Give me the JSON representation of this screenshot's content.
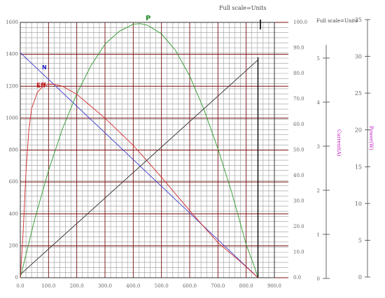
{
  "chart_data": {
    "type": "line",
    "headers": {
      "main": "Full scale=Units",
      "side": "Full scale=Units"
    },
    "x": {
      "range": [
        0,
        900
      ],
      "ticks": [
        0,
        100,
        200,
        300,
        400,
        500,
        600,
        700,
        800,
        900
      ],
      "tick_labels": [
        "0.0",
        "100.0",
        "200.0",
        "300.0",
        "400.0",
        "500.0",
        "600.0",
        "700.0",
        "800.0",
        "900.0"
      ]
    },
    "left_axis": {
      "range": [
        0,
        1600
      ],
      "ticks": [
        0,
        200,
        400,
        600,
        800,
        1000,
        1200,
        1400,
        1600
      ],
      "tick_labels": [
        "0",
        "200",
        "400",
        "600",
        "800",
        "1000",
        "1200",
        "1400",
        "1600"
      ]
    },
    "mid_axis": {
      "range": [
        0,
        100
      ],
      "ticks": [
        0,
        10,
        20,
        30,
        40,
        50,
        60,
        70,
        80,
        90,
        100
      ],
      "tick_labels": [
        "0.0",
        "10.0",
        "20.0",
        "30.0",
        "40.0",
        "50.0",
        "60.0",
        "70.0",
        "80.0",
        "90.0",
        "100.0"
      ]
    },
    "current_axis": {
      "label": "Current(A)",
      "color": "#c020c0",
      "range": [
        0,
        6
      ],
      "ticks": [
        0,
        1,
        2,
        3,
        4,
        5
      ],
      "tick_labels": [
        "0",
        "1",
        "2",
        "3",
        "4",
        "5"
      ]
    },
    "power_axis": {
      "label": "Power(W)",
      "color": "#c020c0",
      "range": [
        0,
        35
      ],
      "ticks": [
        0,
        5,
        10,
        15,
        20,
        25,
        30,
        35
      ],
      "tick_labels": [
        "0",
        "5",
        "10",
        "15",
        "20",
        "25",
        "30",
        "35"
      ]
    },
    "series": [
      {
        "name": "N",
        "axis": "left",
        "color": "#3a3ad0",
        "x": [
          0,
          842
        ],
        "y": [
          1410,
          0
        ]
      },
      {
        "name": "P",
        "axis": "mid",
        "color": "#2e9a2e",
        "x": [
          0,
          50,
          100,
          150,
          200,
          250,
          300,
          350,
          400,
          425,
          450,
          500,
          550,
          600,
          650,
          700,
          750,
          800,
          830,
          842
        ],
        "y": [
          0,
          22.5,
          42,
          58.5,
          72,
          83,
          91.5,
          96.5,
          99.3,
          99.5,
          98.9,
          95.5,
          89,
          79,
          66,
          50.5,
          33,
          13,
          4,
          0
        ]
      },
      {
        "name": "Eff",
        "axis": "left",
        "color": "#d42a2a",
        "x": [
          0,
          10,
          20,
          30,
          40,
          60,
          80,
          100,
          120,
          150,
          200,
          300,
          400,
          500,
          600,
          700,
          780,
          842
        ],
        "y": [
          0,
          280,
          660,
          920,
          1060,
          1160,
          1200,
          1212,
          1212,
          1200,
          1150,
          1000,
          830,
          630,
          420,
          220,
          100,
          0
        ]
      },
      {
        "name": "I",
        "axis": "left",
        "color": "#333333",
        "x": [
          0,
          842
        ],
        "y": [
          20,
          1365
        ]
      }
    ],
    "annotations": [
      {
        "text": "P",
        "color": "#1e8a1e"
      },
      {
        "text": "N",
        "color": "#2020c0"
      },
      {
        "text": "Eff",
        "color": "#c01010"
      }
    ],
    "grid": true
  }
}
